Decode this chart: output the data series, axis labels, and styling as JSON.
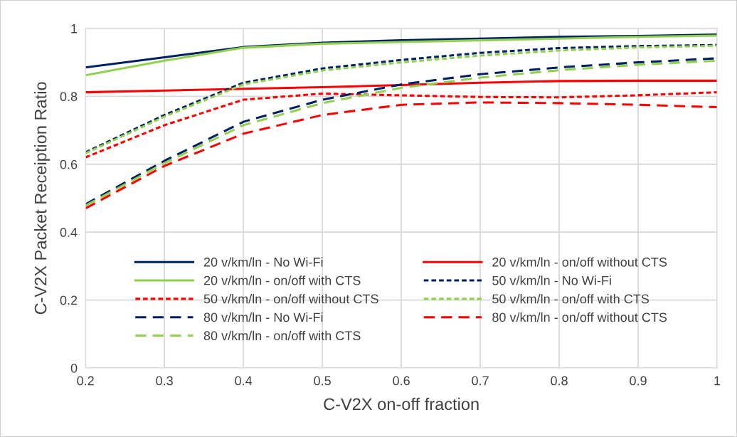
{
  "chart_data": {
    "type": "line",
    "xlabel": "C-V2X on-off fraction",
    "ylabel": "C-V2X Packet Receiption Ratio",
    "x": [
      0.2,
      0.3,
      0.4,
      0.5,
      0.6,
      0.7,
      0.8,
      0.9,
      1.0
    ],
    "xlim": [
      0.2,
      1
    ],
    "xticks": [
      0.2,
      0.3,
      0.4,
      0.5,
      0.6,
      0.7,
      0.8,
      0.9,
      1
    ],
    "ylim": [
      0,
      1
    ],
    "yticks": [
      0,
      0.2,
      0.4,
      0.6,
      0.8,
      1
    ],
    "grid": true,
    "legend": "bottom",
    "marker": "none",
    "series": [
      {
        "name": "20 v/km/ln - No Wi-Fi",
        "color": "#002060",
        "line_style": "solid",
        "values": [
          0.885,
          0.915,
          0.945,
          0.958,
          0.965,
          0.97,
          0.975,
          0.978,
          0.982
        ]
      },
      {
        "name": "20 v/km/ln - on/off without CTS",
        "color": "#ff0000",
        "line_style": "solid",
        "values": [
          0.812,
          0.817,
          0.822,
          0.827,
          0.833,
          0.84,
          0.845,
          0.846,
          0.846
        ]
      },
      {
        "name": "20 v/km/ln - on/off with CTS",
        "color": "#92d050",
        "line_style": "solid",
        "values": [
          0.862,
          0.905,
          0.943,
          0.955,
          0.96,
          0.965,
          0.97,
          0.975,
          0.979
        ]
      },
      {
        "name": "50 v/km/ln - No Wi-Fi",
        "color": "#002060",
        "line_style": "dotted",
        "values": [
          0.635,
          0.745,
          0.84,
          0.882,
          0.907,
          0.928,
          0.942,
          0.948,
          0.951
        ]
      },
      {
        "name": "50 v/km/ln - on/off without CTS",
        "color": "#ff0000",
        "line_style": "dotted",
        "values": [
          0.62,
          0.715,
          0.79,
          0.808,
          0.803,
          0.798,
          0.797,
          0.803,
          0.812
        ]
      },
      {
        "name": "50 v/km/ln - on/off with CTS",
        "color": "#92d050",
        "line_style": "dotted",
        "values": [
          0.632,
          0.74,
          0.835,
          0.876,
          0.9,
          0.92,
          0.935,
          0.944,
          0.949
        ]
      },
      {
        "name": "80 v/km/ln - No Wi-Fi",
        "color": "#002060",
        "line_style": "dashed",
        "values": [
          0.482,
          0.61,
          0.725,
          0.79,
          0.835,
          0.865,
          0.885,
          0.9,
          0.912
        ]
      },
      {
        "name": "80 v/km/ln - on/off without CTS",
        "color": "#ff0000",
        "line_style": "dashed",
        "values": [
          0.47,
          0.595,
          0.69,
          0.745,
          0.775,
          0.782,
          0.78,
          0.775,
          0.768
        ]
      },
      {
        "name": "80 v/km/ln - on/off with CTS",
        "color": "#92d050",
        "line_style": "dashed",
        "values": [
          0.478,
          0.603,
          0.715,
          0.78,
          0.825,
          0.855,
          0.877,
          0.893,
          0.905
        ]
      }
    ]
  }
}
